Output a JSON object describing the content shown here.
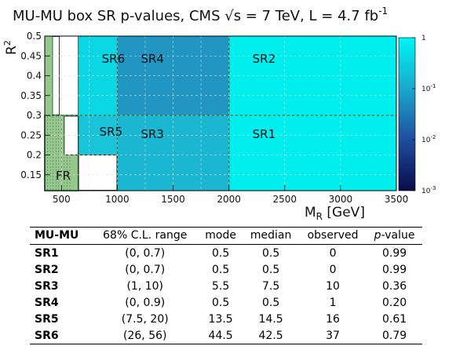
{
  "chart_data": {
    "type": "heatmap",
    "title_main": "MU-MU box SR p-values, CMS ",
    "title_sqrt": "√",
    "title_s": "s = 7 TeV, L = 4.7 fb",
    "title_sup": "-1",
    "xlabel_main": "M",
    "xlabel_sub": "R",
    "xlabel_unit": " [GeV]",
    "ylabel_main": "R",
    "ylabel_sup": "2",
    "xlim": [
      350,
      3500
    ],
    "ylim": [
      0.11,
      0.5
    ],
    "x_ticks": [
      "500",
      "1000",
      "1500",
      "2000",
      "2500",
      "3000",
      "3500"
    ],
    "x_tick_values": [
      500,
      1000,
      1500,
      2000,
      2500,
      3000,
      3500
    ],
    "y_ticks": [
      "0.15",
      "0.2",
      "0.25",
      "0.3",
      "0.35",
      "0.4",
      "0.45",
      "0.5"
    ],
    "y_tick_values": [
      0.15,
      0.2,
      0.25,
      0.3,
      0.35,
      0.4,
      0.45,
      0.5
    ],
    "colorbar": {
      "scale": "log",
      "range": [
        0.001,
        1
      ],
      "ticks": [
        "1",
        "10",
        "10",
        "10"
      ],
      "tick_exps": [
        "",
        "-1",
        "-2",
        "-3"
      ],
      "tick_values": [
        1,
        0.1,
        0.01,
        0.001
      ]
    },
    "regions": [
      {
        "label": "SR1",
        "x": [
          2000,
          3500
        ],
        "y": [
          0.11,
          0.3
        ],
        "p_value": 0.99
      },
      {
        "label": "SR2",
        "x": [
          2000,
          3500
        ],
        "y": [
          0.3,
          0.5
        ],
        "p_value": 0.99
      },
      {
        "label": "SR3",
        "x": [
          1000,
          2000
        ],
        "y": [
          0.11,
          0.3
        ],
        "p_value": 0.36
      },
      {
        "label": "SR4",
        "x": [
          1000,
          2000
        ],
        "y": [
          0.3,
          0.5
        ],
        "p_value": 0.2
      },
      {
        "label": "SR5",
        "x": [
          650,
          1000
        ],
        "y": [
          0.2,
          0.3
        ],
        "p_value": 0.61
      },
      {
        "label": "SR6",
        "x": [
          650,
          1000
        ],
        "y": [
          0.3,
          0.5
        ],
        "p_value": 0.79
      },
      {
        "label": "FR",
        "x": [
          350,
          650
        ],
        "y": [
          0.11,
          0.3
        ]
      }
    ],
    "colors": {
      "SR1": "#00eeee",
      "SR2": "#00eeee",
      "SR3": "#1bb6d2",
      "SR4": "#2196c2",
      "SR5": "#19c3da",
      "SR6": "#0ad6e4",
      "FR": "#99c68e",
      "FR_line": "#1e7a3a",
      "grid": "#dddddd"
    }
  },
  "table": {
    "headers": {
      "region": "MU-MU",
      "range": "68% C.L. range",
      "mode": "mode",
      "median": "median",
      "observed": "observed",
      "p_italic": "p",
      "p_rest": "-value"
    },
    "rows": [
      {
        "region": "SR1",
        "range": "(0, 0.7)",
        "mode": "0.5",
        "median": "0.5",
        "observed": "0",
        "pvalue": "0.99"
      },
      {
        "region": "SR2",
        "range": "(0, 0.7)",
        "mode": "0.5",
        "median": "0.5",
        "observed": "0",
        "pvalue": "0.99"
      },
      {
        "region": "SR3",
        "range": "(1, 10)",
        "mode": "5.5",
        "median": "7.5",
        "observed": "10",
        "pvalue": "0.36"
      },
      {
        "region": "SR4",
        "range": "(0, 0.9)",
        "mode": "0.5",
        "median": "0.5",
        "observed": "1",
        "pvalue": "0.20"
      },
      {
        "region": "SR5",
        "range": "(7.5, 20)",
        "mode": "13.5",
        "median": "14.5",
        "observed": "16",
        "pvalue": "0.61"
      },
      {
        "region": "SR6",
        "range": "(26, 56)",
        "mode": "44.5",
        "median": "42.5",
        "observed": "37",
        "pvalue": "0.79"
      }
    ]
  }
}
